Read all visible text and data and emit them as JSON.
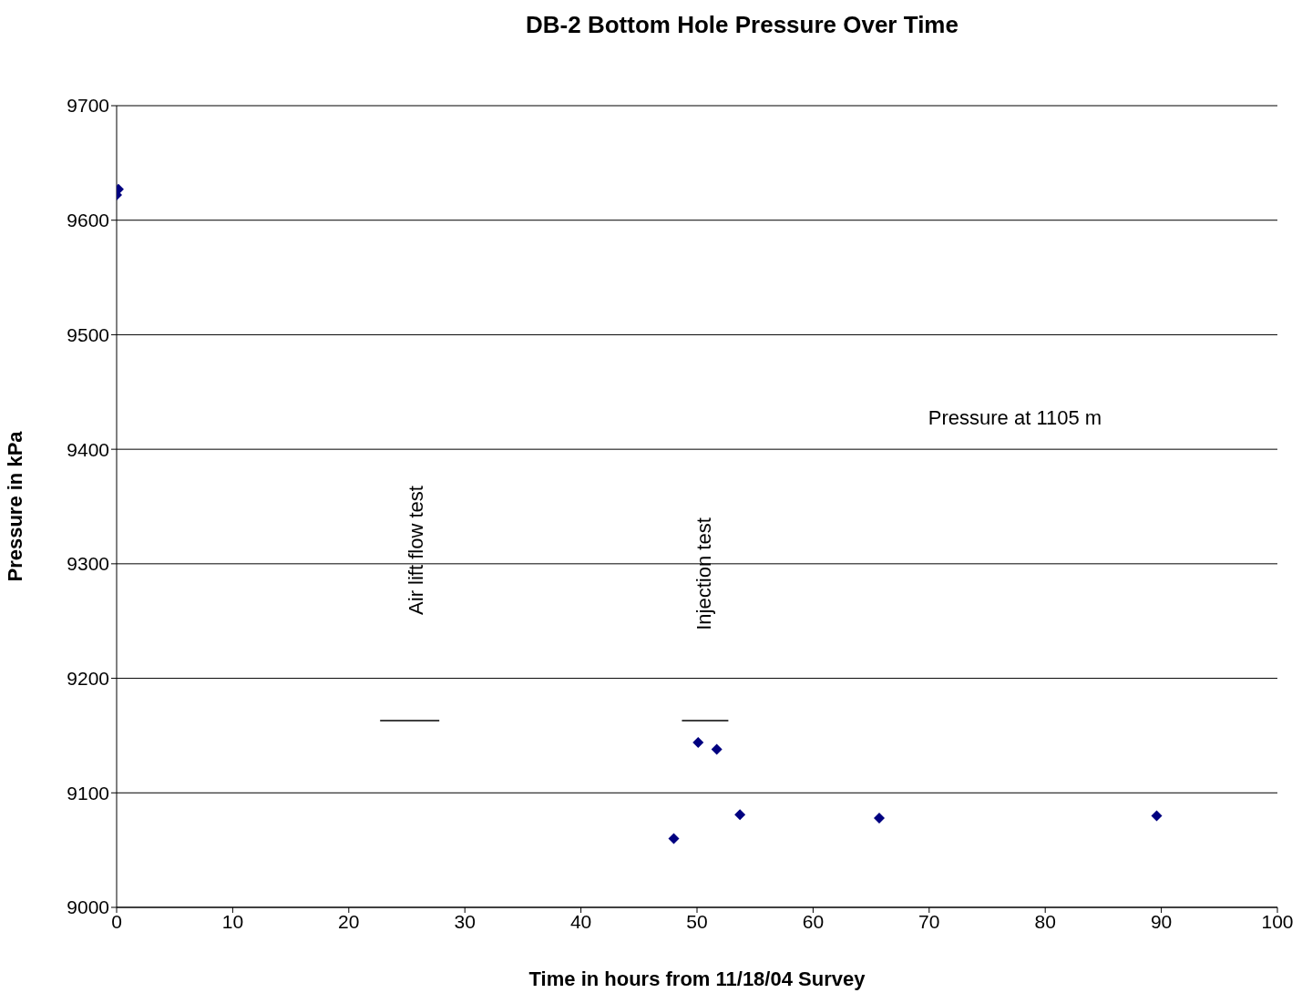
{
  "chart_data": {
    "type": "scatter",
    "title": "DB-2 Bottom Hole Pressure Over Time",
    "xlabel": "Time in hours from 11/18/04 Survey",
    "ylabel": "Pressure in kPa",
    "series": [
      {
        "color": "#000080",
        "x": [
          0,
          0.15,
          48,
          50.1,
          51.7,
          53.7,
          65.7,
          89.6
        ],
        "values": [
          9622,
          9627,
          9060,
          9144,
          9138,
          9081,
          9078,
          9080
        ]
      },
      {
        "type": "line",
        "color": "#000000",
        "marker": "none",
        "x": [
          22.7,
          27.8
        ],
        "values": [
          9163,
          9163
        ]
      },
      {
        "type": "line",
        "color": "#000000",
        "marker": "none",
        "x": [
          48.7,
          52.7
        ],
        "values": [
          9163,
          9163
        ]
      }
    ],
    "annotations": [
      "Air lift flow test",
      "Injection test",
      "Pressure at 1105 m"
    ],
    "xlim": [
      0,
      100
    ],
    "xticks": [
      0,
      10,
      20,
      30,
      40,
      50,
      60,
      70,
      80,
      90,
      100
    ],
    "ylim": [
      9000,
      9700
    ],
    "yticks": [
      9000,
      9100,
      9200,
      9300,
      9400,
      9500,
      9600,
      9700
    ],
    "grid": "y",
    "marker": "diamond"
  }
}
